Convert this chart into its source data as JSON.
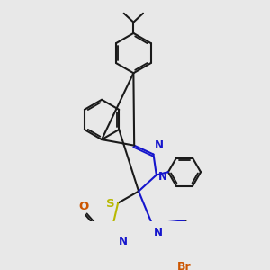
{
  "bg": "#e8e8e8",
  "bc": "#1a1a1a",
  "nc": "#1515cc",
  "sc": "#b8b800",
  "oc": "#cc5500",
  "brc": "#cc5500",
  "lw": 1.5,
  "fs": 8.5,
  "figsize": [
    3.0,
    3.0
  ],
  "dpi": 100,
  "xlim": [
    0,
    300
  ],
  "ylim": [
    0,
    300
  ]
}
